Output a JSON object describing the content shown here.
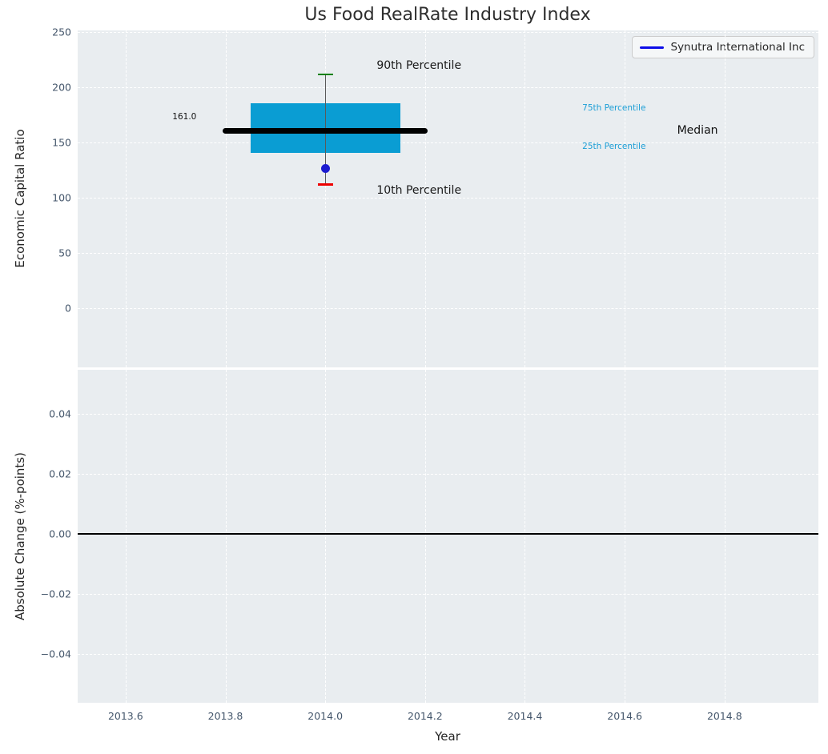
{
  "title": "Us Food RealRate Industry Index",
  "legend": {
    "label": "Synutra International Inc",
    "line_color": "#0d0de8"
  },
  "chart_data": {
    "type": "boxplot",
    "title": "Us Food RealRate Industry Index",
    "xlabel": "Year",
    "grid": "white dashed on light gray background",
    "legend_position": "upper right",
    "xlim": [
      2013.504,
      2014.988
    ],
    "xticks": [
      {
        "v": 2013.6,
        "label": "2013.6"
      },
      {
        "v": 2013.8,
        "label": "2013.8"
      },
      {
        "v": 2014.0,
        "label": "2014.0"
      },
      {
        "v": 2014.2,
        "label": "2014.2"
      },
      {
        "v": 2014.4,
        "label": "2014.4"
      },
      {
        "v": 2014.6,
        "label": "2014.6"
      },
      {
        "v": 2014.8,
        "label": "2014.8"
      }
    ],
    "top_panel": {
      "ylabel": "Economic Capital Ratio",
      "ylim": [
        -53.3,
        251.8
      ],
      "yticks": [
        {
          "v": 0,
          "label": "0"
        },
        {
          "v": 50,
          "label": "50"
        },
        {
          "v": 100,
          "label": "100"
        },
        {
          "v": 150,
          "label": "150"
        },
        {
          "v": 200,
          "label": "200"
        },
        {
          "v": 250,
          "label": "250"
        }
      ],
      "box": {
        "center_x": 2014.0,
        "box_x_range": [
          2013.85,
          2014.15
        ],
        "median_x_range": [
          2013.795,
          2014.205
        ],
        "p10": 112,
        "p25": 141,
        "median": 161,
        "p75": 186,
        "p90": 212,
        "median_label": "161.0",
        "box_color": "#0a9dd3",
        "median_color": "#000000",
        "whisker_color": "#5a5a5a",
        "p90_cap_color": "#008000",
        "p10_cap_color": "#ee0000"
      },
      "series": [
        {
          "name": "Synutra International Inc",
          "x": [
            2014.0
          ],
          "y": [
            127
          ],
          "marker": "circle",
          "color": "#1c1cd0"
        }
      ],
      "annotations": [
        {
          "text": "90th Percentile",
          "x": 2014.103,
          "y": 220.0,
          "color": "#1a1a1a",
          "size": 14,
          "ha": "left",
          "name": "annotation-90th-percentile"
        },
        {
          "text": "10th Percentile",
          "x": 2014.103,
          "y": 107.0,
          "color": "#1a1a1a",
          "size": 14,
          "ha": "left",
          "name": "annotation-10th-percentile"
        },
        {
          "text": "75th Percentile",
          "x": 2014.515,
          "y": 181.5,
          "color": "#1b9ed6",
          "size": 10.5,
          "ha": "left",
          "name": "annotation-75th-percentile"
        },
        {
          "text": "25th Percentile",
          "x": 2014.515,
          "y": 146.5,
          "color": "#1b9ed6",
          "size": 10.5,
          "ha": "left",
          "name": "annotation-25th-percentile"
        },
        {
          "text": "Median",
          "x": 2014.705,
          "y": 161.0,
          "color": "#111111",
          "size": 14,
          "ha": "left",
          "name": "annotation-median"
        },
        {
          "text": "161.0",
          "x": 2013.742,
          "y": 173.5,
          "color": "#111111",
          "size": 10.5,
          "ha": "right",
          "name": "median-value-label"
        }
      ]
    },
    "bottom_panel": {
      "ylabel": "Absolute Change (%-points)",
      "ylim": [
        -0.0563,
        0.0547
      ],
      "yticks": [
        {
          "v": -0.04,
          "label": "−0.04"
        },
        {
          "v": -0.02,
          "label": "−0.02"
        },
        {
          "v": 0.0,
          "label": "0.00"
        },
        {
          "v": 0.02,
          "label": "0.02"
        },
        {
          "v": 0.04,
          "label": "0.04"
        }
      ],
      "zero_line": {
        "y": 0.0,
        "color": "#000000"
      }
    }
  }
}
